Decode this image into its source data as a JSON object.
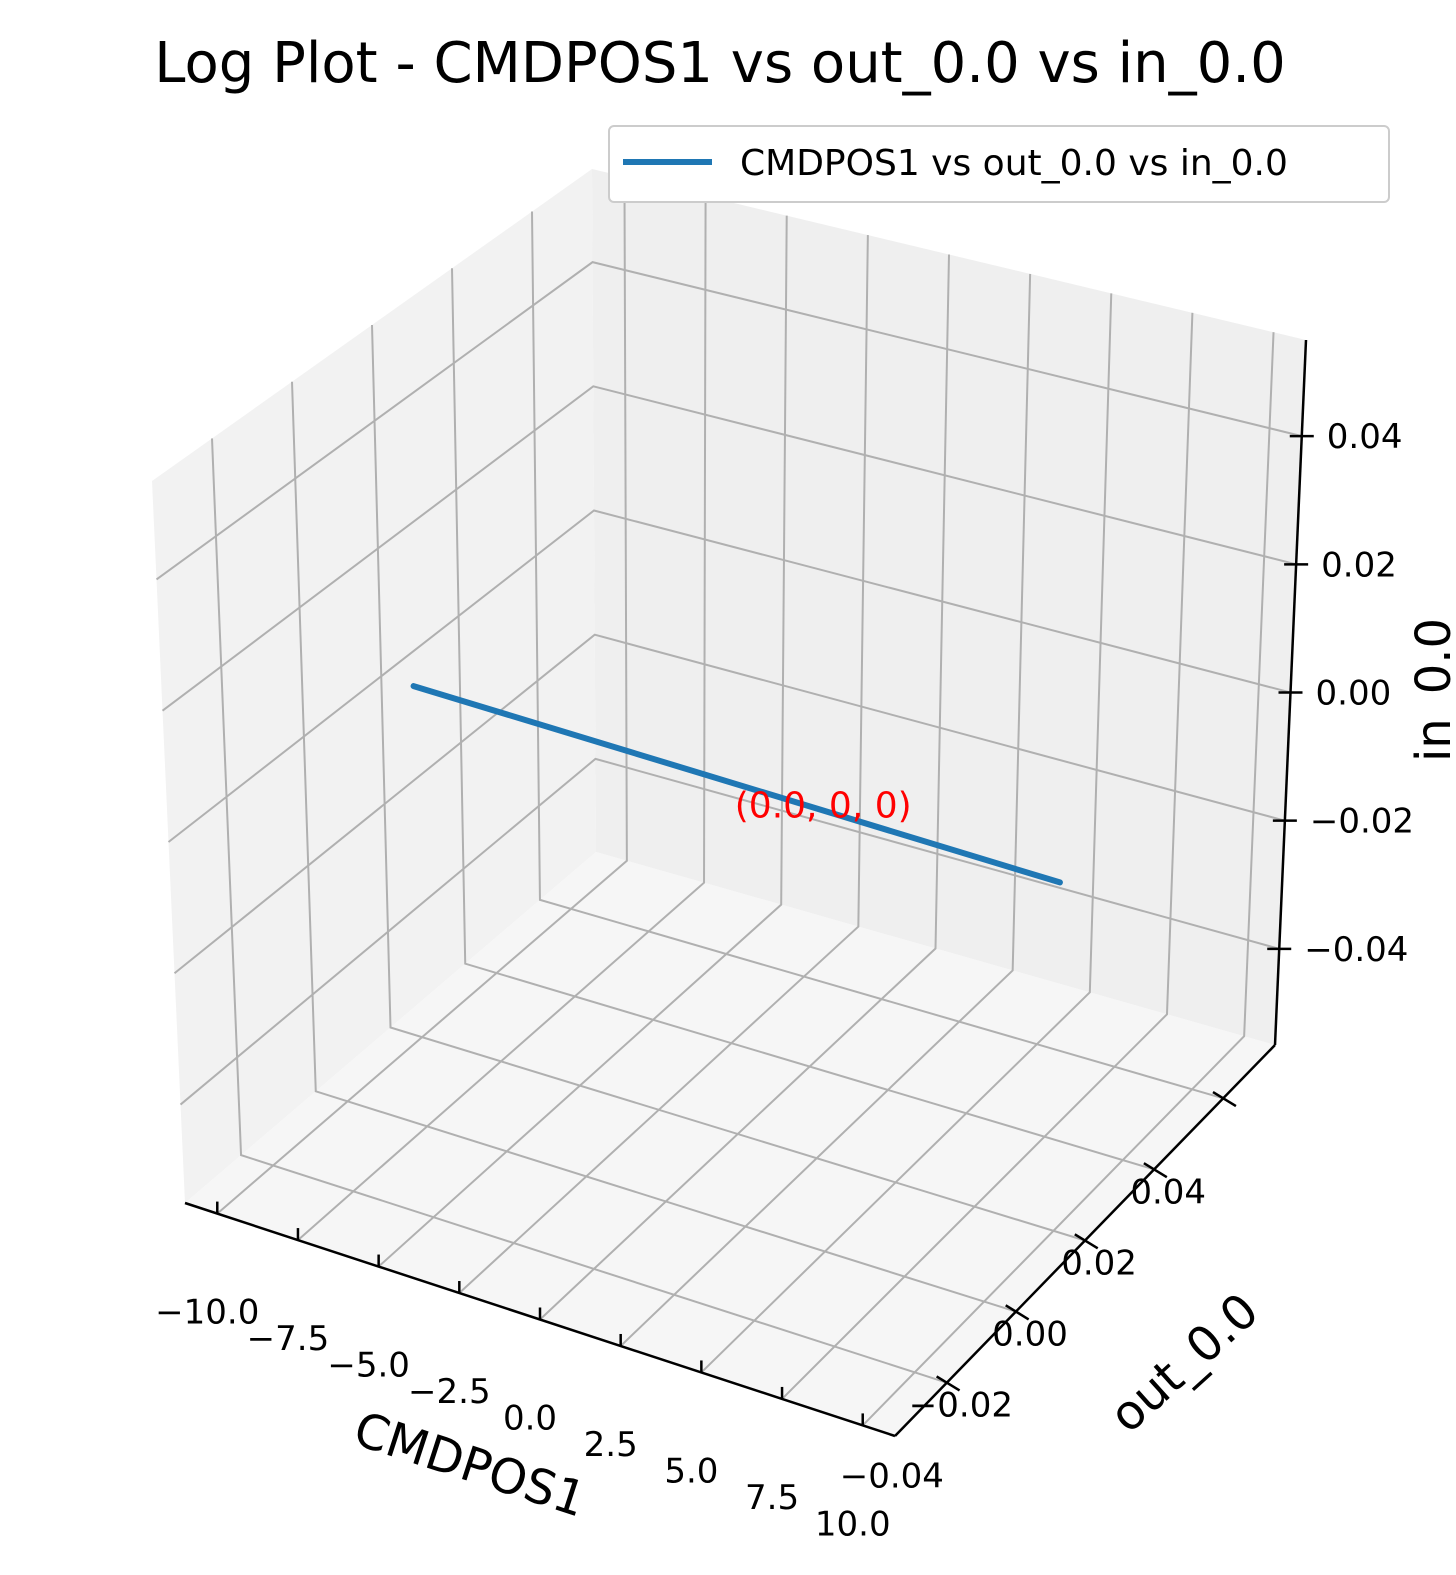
{
  "chart_data": {
    "type": "line",
    "title": "Log Plot - CMDPOS1 vs out_0.0 vs in_0.0",
    "xlabel": "CMDPOS1",
    "ylabel": "out_0.0",
    "zlabel": "in_0.0",
    "x_ticks": [
      "−10.0",
      "−7.5",
      "−5.0",
      "−2.5",
      "0.0",
      "2.5",
      "5.0",
      "7.5",
      "10.0"
    ],
    "y_ticks": [
      "−0.04",
      "−0.02",
      "0.00",
      "0.02",
      "0.04"
    ],
    "z_ticks": [
      "−0.04",
      "−0.02",
      "0.00",
      "0.02",
      "0.04"
    ],
    "xlim": [
      -11,
      11
    ],
    "ylim": [
      -0.055,
      0.055
    ],
    "zlim": [
      -0.055,
      0.055
    ],
    "grid": true,
    "legend_position": "top-right",
    "series": [
      {
        "name": "CMDPOS1 vs out_0.0 vs in_0.0",
        "color": "#1f77b4",
        "points": [
          {
            "x": -10.0,
            "y": 0.0,
            "z": 0.0
          },
          {
            "x": 10.0,
            "y": 0.0,
            "z": 0.0
          }
        ]
      }
    ],
    "annotations": [
      {
        "text": "(0.0, 0, 0)",
        "x": 0.0,
        "y": 0.0,
        "z": 0.0,
        "color": "#ff0000"
      }
    ],
    "pane_colors": {
      "left": "#f2f2f2",
      "back": "#efefef",
      "floor": "#f6f6f6",
      "grid": "#b0b0b0"
    }
  }
}
